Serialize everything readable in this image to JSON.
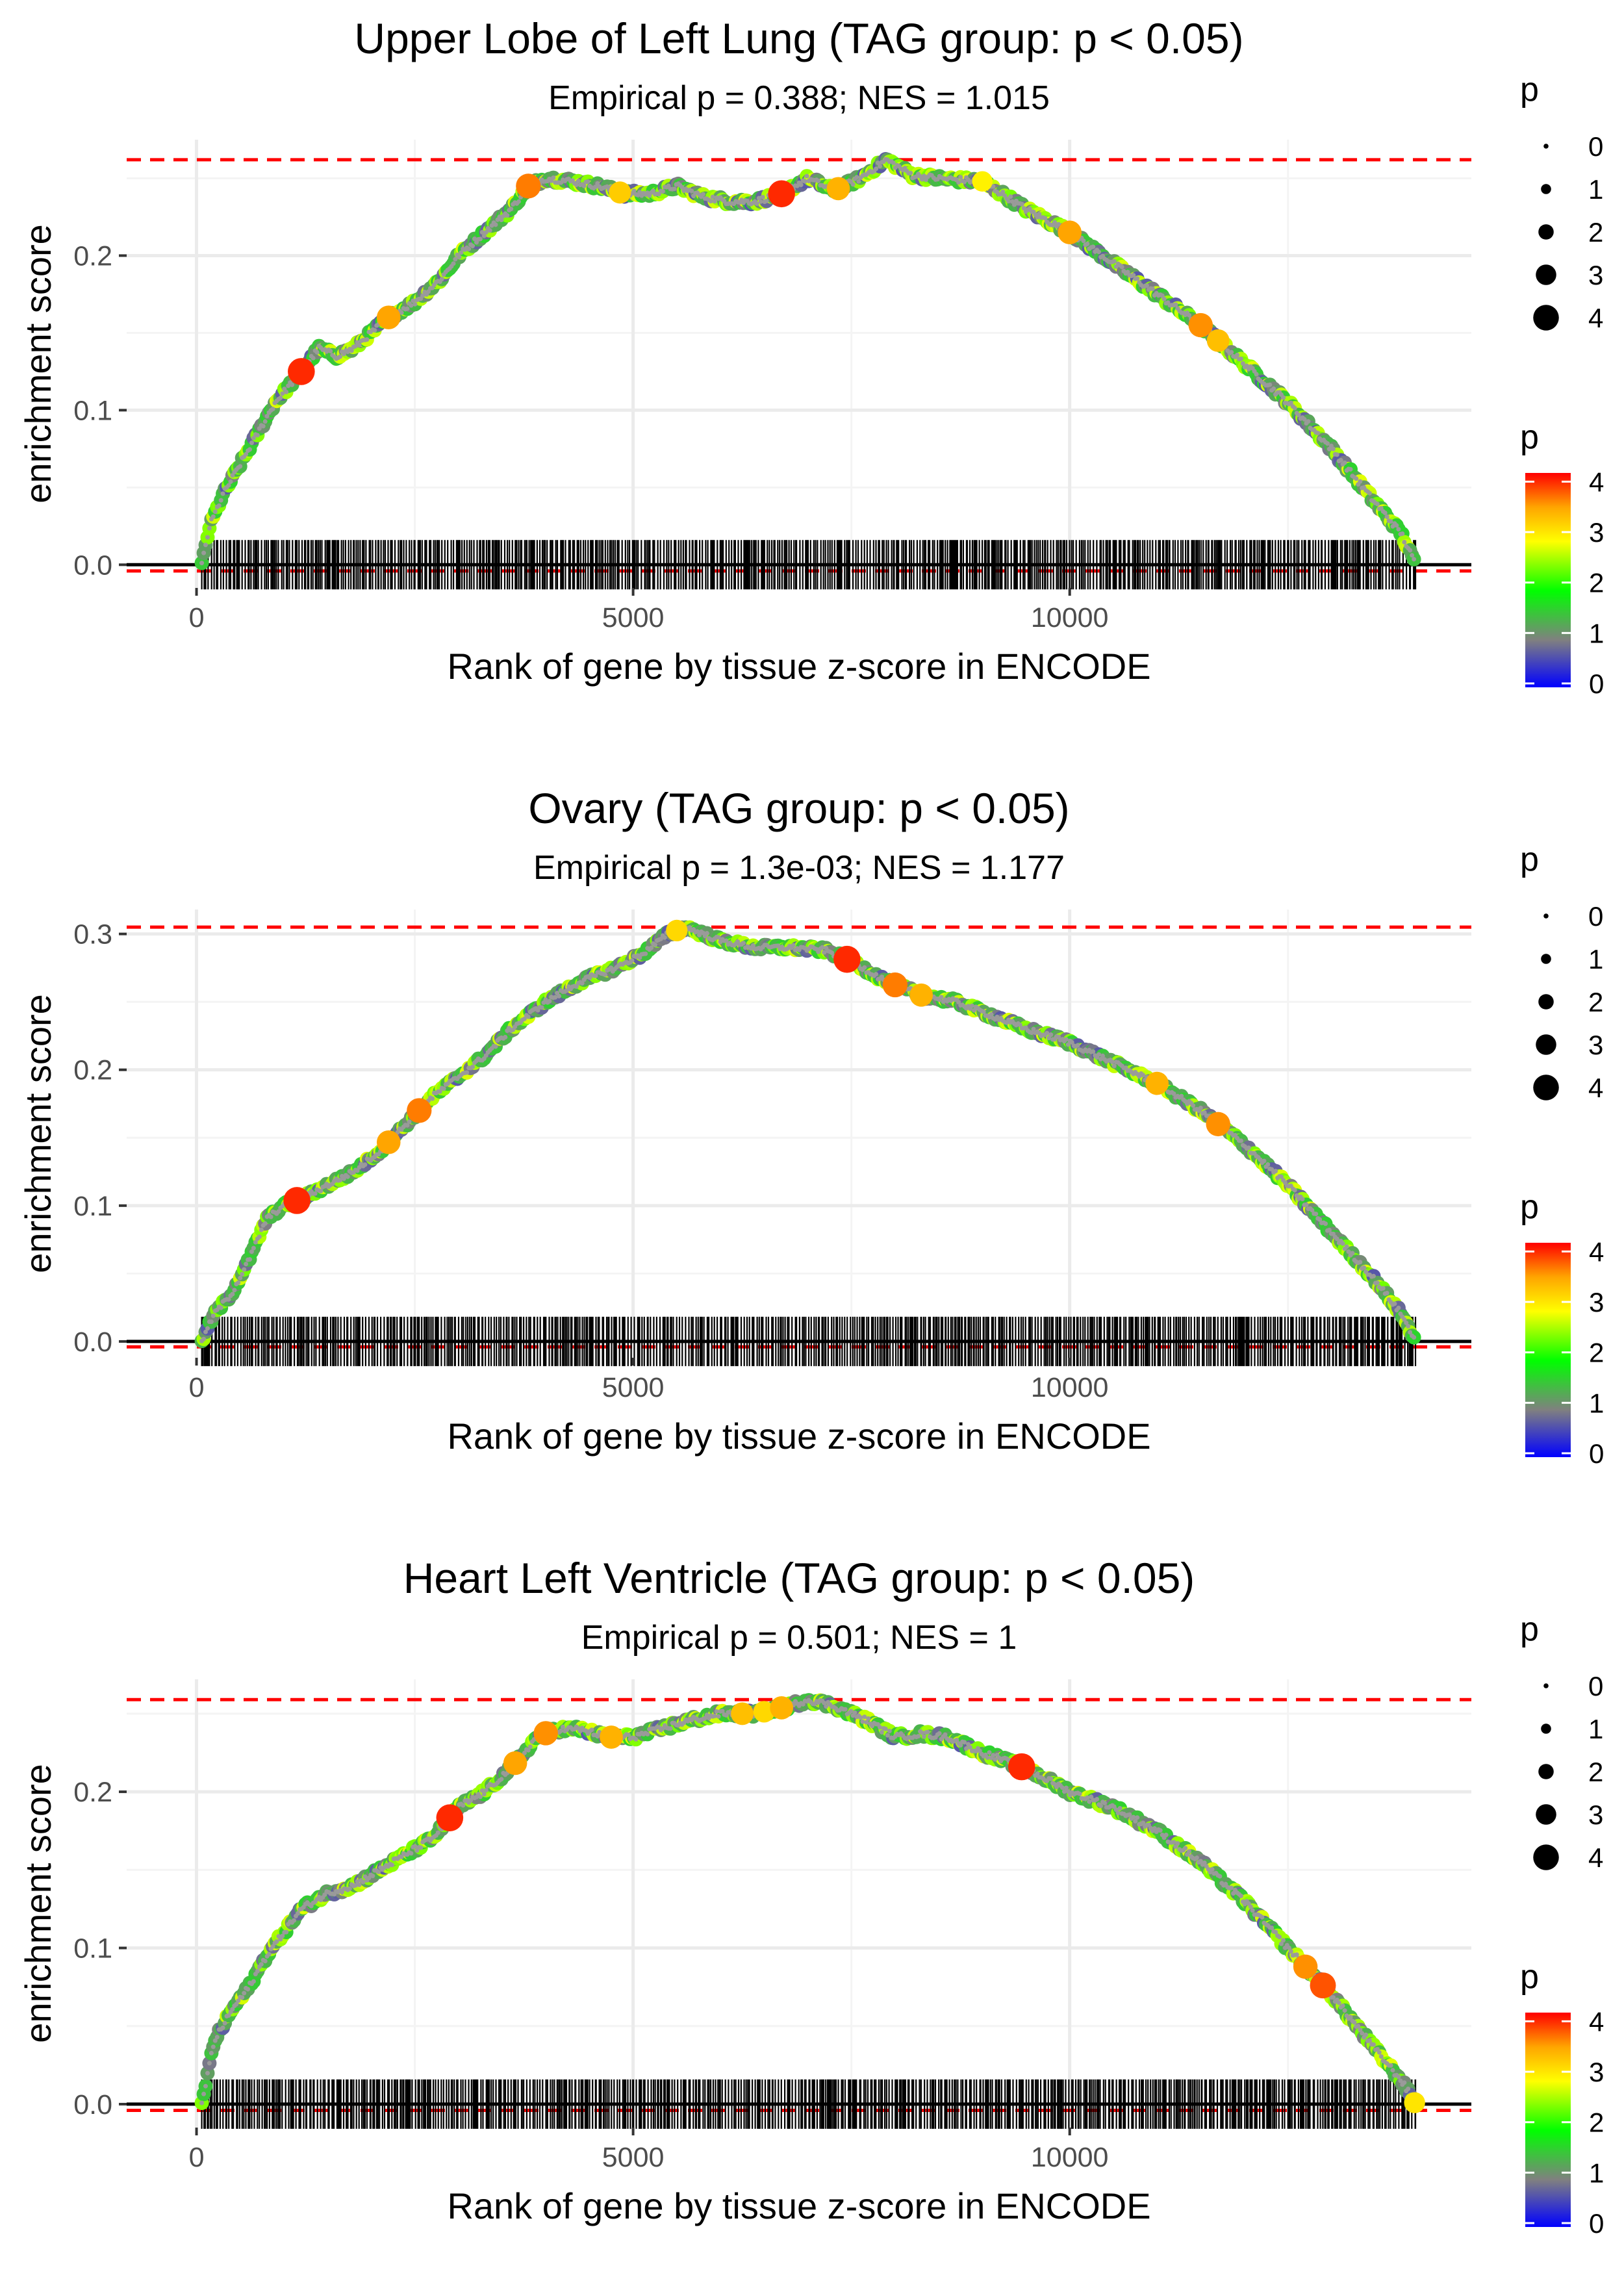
{
  "figure": {
    "xlabel": "Rank of gene by tissue z-score in ENCODE",
    "ylabel": "enrichment score",
    "size_legend_title": "p",
    "size_legend_labels": [
      "0",
      "1",
      "2",
      "3",
      "4"
    ],
    "color_legend_title": "p",
    "color_legend_labels": [
      "0",
      "1",
      "2",
      "3",
      "4"
    ],
    "colors": {
      "gradient": [
        "#0000FF",
        "#808080",
        "#00FF00",
        "#FFFF00",
        "#FFA500",
        "#FF0000"
      ],
      "threshold_line": "#FF0000",
      "axis_line": "#000000",
      "grid": "#EBEBEB",
      "ticks": "#000000"
    }
  },
  "chart_data": [
    {
      "type": "line",
      "title": "Upper Lobe of Left Lung (TAG group: p < 0.05)",
      "subtitle": "Empirical p = 0.388; NES = 1.015",
      "xlim": [
        -800,
        14600
      ],
      "ylim": [
        -0.015,
        0.275
      ],
      "x_ticks": [
        0,
        5000,
        10000
      ],
      "x_tick_labels": [
        "0",
        "5000",
        "10000"
      ],
      "y_ticks": [
        0.0,
        0.1,
        0.2
      ],
      "y_tick_labels": [
        "0.0",
        "0.1",
        "0.2"
      ],
      "max_es": 0.262,
      "min_es": -0.004,
      "curve": {
        "x": [
          60,
          150,
          300,
          500,
          700,
          900,
          1200,
          1400,
          1600,
          1800,
          2000,
          2200,
          2500,
          2800,
          3000,
          3300,
          3600,
          3800,
          4000,
          4300,
          4600,
          4900,
          5200,
          5500,
          5800,
          6100,
          6400,
          6700,
          7000,
          7300,
          7600,
          7900,
          8200,
          8500,
          9000,
          9500,
          10000,
          10500,
          11000,
          11500,
          12000,
          12500,
          13000,
          13500,
          13800,
          13960
        ],
        "y": [
          0.0,
          0.025,
          0.045,
          0.065,
          0.085,
          0.105,
          0.125,
          0.14,
          0.135,
          0.14,
          0.15,
          0.16,
          0.17,
          0.185,
          0.2,
          0.215,
          0.23,
          0.245,
          0.25,
          0.248,
          0.245,
          0.24,
          0.24,
          0.245,
          0.238,
          0.235,
          0.235,
          0.24,
          0.25,
          0.242,
          0.25,
          0.262,
          0.252,
          0.25,
          0.248,
          0.23,
          0.215,
          0.195,
          0.175,
          0.155,
          0.13,
          0.105,
          0.075,
          0.04,
          0.02,
          0.0
        ]
      },
      "highlight_points": [
        {
          "x": 1200,
          "p": 4
        },
        {
          "x": 2200,
          "p": 3.4
        },
        {
          "x": 3800,
          "p": 3.6
        },
        {
          "x": 4850,
          "p": 3.1
        },
        {
          "x": 6700,
          "p": 4
        },
        {
          "x": 7350,
          "p": 3.3
        },
        {
          "x": 9000,
          "p": 2.8
        },
        {
          "x": 10000,
          "p": 3.4
        },
        {
          "x": 11500,
          "p": 3.5
        },
        {
          "x": 11700,
          "p": 3.2
        }
      ],
      "rug_positions": "gene ranks 60–13960 (dense rug)"
    },
    {
      "type": "line",
      "title": "Ovary (TAG group: p < 0.05)",
      "subtitle": "Empirical p = 1.3e-03; NES = 1.177",
      "xlim": [
        -800,
        14600
      ],
      "ylim": [
        -0.012,
        0.318
      ],
      "x_ticks": [
        0,
        5000,
        10000
      ],
      "x_tick_labels": [
        "0",
        "5000",
        "10000"
      ],
      "y_ticks": [
        0.0,
        0.1,
        0.2,
        0.3
      ],
      "y_tick_labels": [
        "0.0",
        "0.1",
        "0.2",
        "0.3"
      ],
      "max_es": 0.305,
      "min_es": -0.004,
      "curve": {
        "x": [
          60,
          200,
          400,
          600,
          800,
          1000,
          1200,
          1500,
          1800,
          2100,
          2400,
          2700,
          3000,
          3300,
          3600,
          4000,
          4400,
          4800,
          5100,
          5400,
          5600,
          6000,
          6400,
          6800,
          7200,
          7500,
          7900,
          8300,
          8700,
          9100,
          9500,
          10000,
          10500,
          11000,
          11500,
          12000,
          12500,
          13000,
          13500,
          13800,
          13960
        ],
        "y": [
          0.0,
          0.02,
          0.035,
          0.06,
          0.09,
          0.1,
          0.105,
          0.115,
          0.125,
          0.14,
          0.16,
          0.18,
          0.195,
          0.21,
          0.23,
          0.25,
          0.265,
          0.275,
          0.285,
          0.3,
          0.305,
          0.295,
          0.29,
          0.29,
          0.288,
          0.28,
          0.265,
          0.255,
          0.25,
          0.24,
          0.23,
          0.22,
          0.205,
          0.19,
          0.17,
          0.145,
          0.115,
          0.08,
          0.045,
          0.02,
          0.0
        ]
      },
      "highlight_points": [
        {
          "x": 1150,
          "p": 4
        },
        {
          "x": 2200,
          "p": 3.4
        },
        {
          "x": 2550,
          "p": 3.6
        },
        {
          "x": 5500,
          "p": 3.0
        },
        {
          "x": 7450,
          "p": 4
        },
        {
          "x": 8000,
          "p": 3.6
        },
        {
          "x": 8300,
          "p": 3.3
        },
        {
          "x": 11000,
          "p": 3.3
        },
        {
          "x": 11700,
          "p": 3.5
        }
      ],
      "rug_positions": "gene ranks 60–13960 (dense rug)"
    },
    {
      "type": "line",
      "title": "Heart Left Ventricle (TAG group: p < 0.05)",
      "subtitle": "Empirical p = 0.501; NES = 1",
      "xlim": [
        -800,
        14600
      ],
      "ylim": [
        -0.015,
        0.272
      ],
      "x_ticks": [
        0,
        5000,
        10000
      ],
      "x_tick_labels": [
        "0",
        "5000",
        "10000"
      ],
      "y_ticks": [
        0.0,
        0.1,
        0.2
      ],
      "y_tick_labels": [
        "0.0",
        "0.1",
        "0.2"
      ],
      "max_es": 0.259,
      "min_es": -0.004,
      "curve": {
        "x": [
          60,
          200,
          400,
          600,
          800,
          1000,
          1200,
          1500,
          1800,
          2100,
          2400,
          2700,
          3000,
          3300,
          3600,
          3900,
          4100,
          4400,
          4700,
          5000,
          5300,
          5600,
          6000,
          6400,
          6800,
          7000,
          7300,
          7700,
          8000,
          8300,
          8600,
          9000,
          9500,
          10000,
          10500,
          11000,
          11500,
          12000,
          12500,
          13000,
          13500,
          13800,
          13960
        ],
        "y": [
          0.0,
          0.04,
          0.06,
          0.075,
          0.095,
          0.11,
          0.125,
          0.135,
          0.14,
          0.15,
          0.16,
          0.17,
          0.19,
          0.2,
          0.215,
          0.235,
          0.24,
          0.24,
          0.235,
          0.235,
          0.24,
          0.245,
          0.25,
          0.25,
          0.255,
          0.259,
          0.255,
          0.245,
          0.235,
          0.237,
          0.235,
          0.225,
          0.215,
          0.2,
          0.19,
          0.175,
          0.155,
          0.13,
          0.1,
          0.07,
          0.035,
          0.015,
          0.0
        ]
      },
      "highlight_points": [
        {
          "x": 2900,
          "p": 4
        },
        {
          "x": 3650,
          "p": 3.4
        },
        {
          "x": 4000,
          "p": 3.5
        },
        {
          "x": 4750,
          "p": 3.3
        },
        {
          "x": 6250,
          "p": 3.2
        },
        {
          "x": 6500,
          "p": 3.0
        },
        {
          "x": 6700,
          "p": 3.3
        },
        {
          "x": 9450,
          "p": 4
        },
        {
          "x": 12700,
          "p": 3.5
        },
        {
          "x": 12900,
          "p": 3.8
        },
        {
          "x": 13950,
          "p": 2.9
        }
      ],
      "rug_positions": "gene ranks 60–13960 (dense rug)"
    }
  ]
}
